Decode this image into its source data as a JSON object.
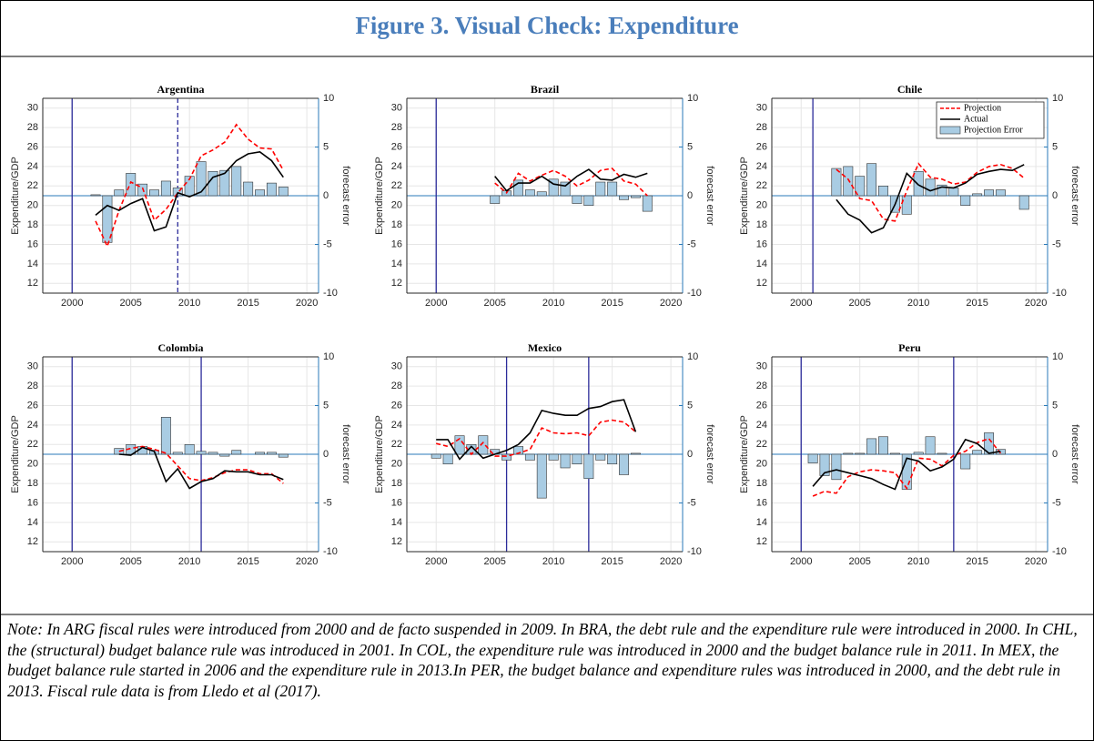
{
  "header": {
    "title": "Figure 3. Visual Check: Expenditure"
  },
  "chart_data": [
    {
      "type": "combo",
      "title": "Argentina",
      "ylabel": "Expenditure/GDP",
      "y2label": "forecast error",
      "x": [
        2002,
        2003,
        2004,
        2005,
        2006,
        2007,
        2008,
        2009,
        2010,
        2011,
        2012,
        2013,
        2014,
        2015,
        2016,
        2017,
        2018
      ],
      "series": [
        {
          "color": "#ff0000",
          "style": "dashed",
          "values": [
            18.4,
            15.8,
            19.5,
            22.4,
            21.8,
            18.5,
            19.6,
            21.3,
            22.7,
            25.1,
            25.7,
            26.5,
            28.3,
            26.8,
            25.9,
            25.8,
            23.6
          ]
        },
        {
          "color": "#000000",
          "style": "solid",
          "values": [
            19,
            20,
            19.5,
            20.2,
            20.7,
            17.4,
            17.8,
            21.3,
            20.9,
            21.4,
            22.9,
            23.3,
            24.6,
            25.3,
            25.5,
            24.6,
            22.9
          ]
        },
        {
          "color": "#a9cce3",
          "style": "bar",
          "axis": "y2",
          "values": [
            0.1,
            -4.8,
            0.6,
            2.3,
            1.2,
            0.6,
            1.5,
            0.8,
            2.0,
            3.5,
            2.5,
            2.6,
            3.0,
            1.4,
            0.6,
            1.3,
            0.9
          ]
        }
      ],
      "xlim": [
        1997.5,
        2021
      ],
      "ylim": [
        11,
        31
      ],
      "y2lim": [
        -10,
        10
      ],
      "xticks": [
        2000,
        2005,
        2010,
        2015,
        2020
      ],
      "yticks": [
        12,
        14,
        16,
        18,
        20,
        22,
        24,
        26,
        28,
        30
      ],
      "y2ticks": [
        -10,
        -5,
        0,
        5,
        10
      ],
      "grid": true,
      "rule_color": "#2b2b9a",
      "rule_lines": [
        {
          "x": 2000,
          "dashed": false
        },
        {
          "x": 2009,
          "dashed": true
        }
      ]
    },
    {
      "type": "combo",
      "title": "Brazil",
      "ylabel": "Expenditure/GDP",
      "y2label": "forecast error",
      "x": [
        2005,
        2006,
        2007,
        2008,
        2009,
        2010,
        2011,
        2012,
        2013,
        2014,
        2015,
        2016,
        2017,
        2018
      ],
      "series": [
        {
          "color": "#ff0000",
          "style": "dashed",
          "values": [
            22.3,
            21.3,
            23.3,
            22.5,
            23.1,
            23.6,
            23,
            22,
            22.6,
            23.6,
            23.8,
            22.5,
            22.2,
            21
          ]
        },
        {
          "color": "#000000",
          "style": "solid",
          "values": [
            23,
            21.5,
            22.3,
            22.3,
            23,
            22.2,
            22,
            23,
            23.7,
            22.7,
            22.6,
            23.2,
            22.9,
            23.3
          ]
        },
        {
          "color": "#a9cce3",
          "style": "bar",
          "axis": "y2",
          "values": [
            -0.8,
            0.5,
            1.6,
            0.6,
            0.4,
            1.7,
            1.4,
            -0.8,
            -1.0,
            1.4,
            1.4,
            -0.4,
            -0.2,
            -1.6
          ]
        }
      ],
      "xlim": [
        1997.5,
        2021
      ],
      "ylim": [
        11,
        31
      ],
      "y2lim": [
        -10,
        10
      ],
      "xticks": [
        2000,
        2005,
        2010,
        2015,
        2020
      ],
      "yticks": [
        12,
        14,
        16,
        18,
        20,
        22,
        24,
        26,
        28,
        30
      ],
      "y2ticks": [
        -10,
        -5,
        0,
        5,
        10
      ],
      "grid": true,
      "rule_color": "#2b2b9a",
      "rule_lines": [
        {
          "x": 2000,
          "dashed": false
        }
      ]
    },
    {
      "type": "combo",
      "title": "Chile",
      "ylabel": "Expenditure/GDP",
      "y2label": "forecast error",
      "x": [
        2003,
        2004,
        2005,
        2006,
        2007,
        2008,
        2009,
        2010,
        2011,
        2012,
        2013,
        2014,
        2015,
        2016,
        2017,
        2018,
        2019
      ],
      "series": [
        {
          "name": "Projection",
          "color": "#ff0000",
          "style": "dashed",
          "values": [
            23.7,
            22.7,
            20.7,
            20.5,
            18.6,
            18.4,
            21.5,
            24.3,
            22.9,
            22.7,
            22.2,
            22.4,
            23.4,
            24.0,
            24.2,
            23.8,
            22.8
          ]
        },
        {
          "name": "Actual",
          "color": "#000000",
          "style": "solid",
          "values": [
            20.6,
            19.1,
            18.5,
            17.2,
            17.7,
            20.1,
            23.3,
            22.1,
            21.5,
            21.9,
            21.8,
            22.3,
            23.2,
            23.5,
            23.7,
            23.6,
            24.2
          ]
        },
        {
          "name": "Projection Error",
          "color": "#a9cce3",
          "style": "bar",
          "axis": "y2",
          "values": [
            2.8,
            3.0,
            2.0,
            3.3,
            1.0,
            -1.7,
            -1.9,
            2.5,
            1.7,
            1.1,
            0.8,
            -1.0,
            0.2,
            0.6,
            0.6,
            0.0,
            -1.4
          ]
        }
      ],
      "xlim": [
        1997.5,
        2021
      ],
      "ylim": [
        11,
        31
      ],
      "y2lim": [
        -10,
        10
      ],
      "xticks": [
        2000,
        2005,
        2010,
        2015,
        2020
      ],
      "yticks": [
        12,
        14,
        16,
        18,
        20,
        22,
        24,
        26,
        28,
        30
      ],
      "y2ticks": [
        -10,
        -5,
        0,
        5,
        10
      ],
      "grid": true,
      "legend": "upper right",
      "rule_color": "#2b2b9a",
      "rule_lines": [
        {
          "x": 2001,
          "dashed": false
        }
      ]
    },
    {
      "type": "combo",
      "title": "Colombia",
      "ylabel": "Expenditure/GDP",
      "y2label": "forecast error",
      "x": [
        2004,
        2005,
        2006,
        2007,
        2008,
        2009,
        2010,
        2011,
        2012,
        2013,
        2014,
        2015,
        2016,
        2017,
        2018
      ],
      "series": [
        {
          "color": "#ff0000",
          "style": "dashed",
          "values": [
            21.3,
            21.6,
            21.8,
            21.5,
            21.1,
            19.8,
            18.5,
            18.3,
            18.6,
            19.1,
            19.4,
            19.4,
            19.0,
            19.0,
            18.0
          ]
        },
        {
          "color": "#000000",
          "style": "solid",
          "values": [
            21,
            20.9,
            21.7,
            21.3,
            18.2,
            19.5,
            17.5,
            18.2,
            18.5,
            19.3,
            19.2,
            19.2,
            18.9,
            18.9,
            18.4
          ]
        },
        {
          "color": "#a9cce3",
          "style": "bar",
          "axis": "y2",
          "values": [
            0.6,
            1.0,
            0.8,
            0.4,
            3.8,
            0.2,
            1.0,
            0.3,
            0.2,
            -0.2,
            0.4,
            0,
            0.2,
            0.2,
            -0.3
          ]
        }
      ],
      "xlim": [
        1997.5,
        2021
      ],
      "ylim": [
        11,
        31
      ],
      "y2lim": [
        -10,
        10
      ],
      "xticks": [
        2000,
        2005,
        2010,
        2015,
        2020
      ],
      "yticks": [
        12,
        14,
        16,
        18,
        20,
        22,
        24,
        26,
        28,
        30
      ],
      "y2ticks": [
        -10,
        -5,
        0,
        5,
        10
      ],
      "grid": true,
      "rule_color": "#2b2b9a",
      "rule_lines": [
        {
          "x": 2000,
          "dashed": false
        },
        {
          "x": 2011,
          "dashed": false
        }
      ]
    },
    {
      "type": "combo",
      "title": "Mexico",
      "ylabel": "Expenditure/GDP",
      "y2label": "forecast error",
      "x": [
        2000,
        2001,
        2002,
        2003,
        2004,
        2005,
        2006,
        2007,
        2008,
        2009,
        2010,
        2011,
        2012,
        2013,
        2014,
        2015,
        2016,
        2017
      ],
      "series": [
        {
          "color": "#ff0000",
          "style": "dashed",
          "values": [
            22.1,
            21.8,
            22.6,
            21.0,
            22.2,
            20.8,
            20.8,
            21.1,
            21.5,
            23.7,
            23.2,
            23.1,
            23.2,
            22.9,
            24.3,
            24.5,
            24.3,
            23.3
          ]
        },
        {
          "color": "#000000",
          "style": "solid",
          "values": [
            22.5,
            22.5,
            20.5,
            21.8,
            20.6,
            21,
            21.4,
            22,
            23.2,
            25.5,
            25.2,
            25,
            25,
            25.7,
            25.9,
            26.4,
            26.6,
            23.3
          ]
        },
        {
          "color": "#a9cce3",
          "style": "bar",
          "axis": "y2",
          "values": [
            -0.4,
            -1.0,
            1.9,
            1.0,
            1.9,
            0.5,
            -0.6,
            0.8,
            -0.6,
            -4.5,
            -0.6,
            -1.4,
            -1.0,
            -2.5,
            -0.6,
            -1.0,
            -2.1,
            0.1
          ]
        }
      ],
      "xlim": [
        1997.5,
        2021
      ],
      "ylim": [
        11,
        31
      ],
      "y2lim": [
        -10,
        10
      ],
      "xticks": [
        2000,
        2005,
        2010,
        2015,
        2020
      ],
      "yticks": [
        12,
        14,
        16,
        18,
        20,
        22,
        24,
        26,
        28,
        30
      ],
      "y2ticks": [
        -10,
        -5,
        0,
        5,
        10
      ],
      "grid": true,
      "rule_color": "#2b2b9a",
      "rule_lines": [
        {
          "x": 2006,
          "dashed": false
        },
        {
          "x": 2013,
          "dashed": false
        }
      ]
    },
    {
      "type": "combo",
      "title": "Peru",
      "ylabel": "Expenditure/GDP",
      "y2label": "forecast error",
      "x": [
        2001,
        2002,
        2003,
        2004,
        2005,
        2006,
        2007,
        2008,
        2009,
        2010,
        2011,
        2012,
        2013,
        2014,
        2015,
        2016,
        2017
      ],
      "series": [
        {
          "color": "#ff0000",
          "style": "dashed",
          "values": [
            16.7,
            17.2,
            17.0,
            18.7,
            19.2,
            19.4,
            19.3,
            19.1,
            17.5,
            20.6,
            20.5,
            19.8,
            20.9,
            21.3,
            22.2,
            22.6,
            21.1
          ]
        },
        {
          "color": "#000000",
          "style": "solid",
          "values": [
            17.7,
            19.1,
            19.4,
            19.1,
            18.8,
            18.5,
            17.9,
            17.4,
            20.6,
            20.3,
            19.3,
            19.7,
            20.5,
            22.5,
            22.1,
            21.1,
            21.3
          ]
        },
        {
          "color": "#a9cce3",
          "style": "bar",
          "axis": "y2",
          "values": [
            -0.9,
            -2.2,
            -2.6,
            0.1,
            0.1,
            1.6,
            1.8,
            0.1,
            -3.6,
            0.2,
            1.8,
            0.1,
            0,
            -1.5,
            0.4,
            2.2,
            0.5
          ]
        }
      ],
      "xlim": [
        1997.5,
        2021
      ],
      "ylim": [
        11,
        31
      ],
      "y2lim": [
        -10,
        10
      ],
      "xticks": [
        2000,
        2005,
        2010,
        2015,
        2020
      ],
      "yticks": [
        12,
        14,
        16,
        18,
        20,
        22,
        24,
        26,
        28,
        30
      ],
      "y2ticks": [
        -10,
        -5,
        0,
        5,
        10
      ],
      "grid": true,
      "rule_color": "#2b2b9a",
      "rule_lines": [
        {
          "x": 2000,
          "dashed": false
        },
        {
          "x": 2013,
          "dashed": false
        }
      ]
    }
  ],
  "note": "Note: In ARG fiscal rules were introduced from 2000 and de facto suspended in 2009. In BRA, the debt rule and the expenditure rule were introduced in 2000. In CHL, the (structural) budget balance rule was introduced in 2001. In COL, the expenditure rule was introduced in 2000 and the budget balance rule in 2011. In MEX, the budget balance rule started in 2006 and the expenditure rule in 2013.In PER, the budget balance and expenditure rules was introduced in 2000, and the debt rule in 2013. Fiscal rule data is from Lledo et al (2017)."
}
